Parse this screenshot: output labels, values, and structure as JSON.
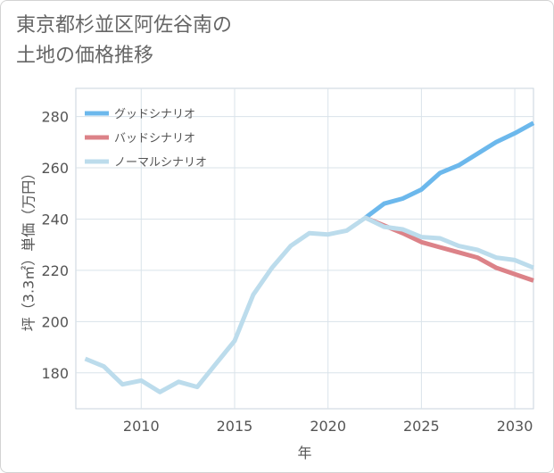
{
  "title": {
    "line1": "東京都杉並区阿佐谷南の",
    "line2": "土地の価格推移"
  },
  "chart_data": {
    "type": "line",
    "xlabel": "年",
    "ylabel": "坪（3.3㎡）単価（万円）",
    "xlim": [
      2006.5,
      2031
    ],
    "ylim": [
      166,
      291
    ],
    "x_ticks": [
      2010,
      2015,
      2020,
      2025,
      2030
    ],
    "y_ticks": [
      180,
      200,
      220,
      240,
      260,
      280
    ],
    "grid": true,
    "legend_position": "top-left",
    "series": [
      {
        "name": "グッドシナリオ",
        "color": "#6cb8ec",
        "x": [
          2022,
          2023,
          2024,
          2025,
          2026,
          2027,
          2028,
          2029,
          2030,
          2031
        ],
        "y": [
          240.5,
          246,
          248,
          251.5,
          258,
          261,
          265.5,
          270,
          273.5,
          277.5
        ]
      },
      {
        "name": "バッドシナリオ",
        "color": "#dc8288",
        "x": [
          2022,
          2023,
          2024,
          2025,
          2026,
          2027,
          2028,
          2029,
          2030,
          2031
        ],
        "y": [
          240.5,
          237.5,
          234.5,
          231,
          229,
          227,
          225,
          221,
          218.5,
          216
        ]
      },
      {
        "name": "ノーマルシナリオ",
        "color": "#bcdcec",
        "x": [
          2007,
          2008,
          2009,
          2010,
          2011,
          2012,
          2013,
          2014,
          2015,
          2016,
          2017,
          2018,
          2019,
          2020,
          2021,
          2022,
          2023,
          2024,
          2025,
          2026,
          2027,
          2028,
          2029,
          2030,
          2031
        ],
        "y": [
          185.5,
          182.5,
          175.5,
          177,
          172.5,
          176.5,
          174.5,
          183.5,
          192.5,
          210.5,
          221,
          229.5,
          234.5,
          234,
          235.5,
          240.5,
          237,
          236,
          233,
          232.5,
          229.5,
          228,
          225,
          224,
          221
        ]
      }
    ]
  }
}
